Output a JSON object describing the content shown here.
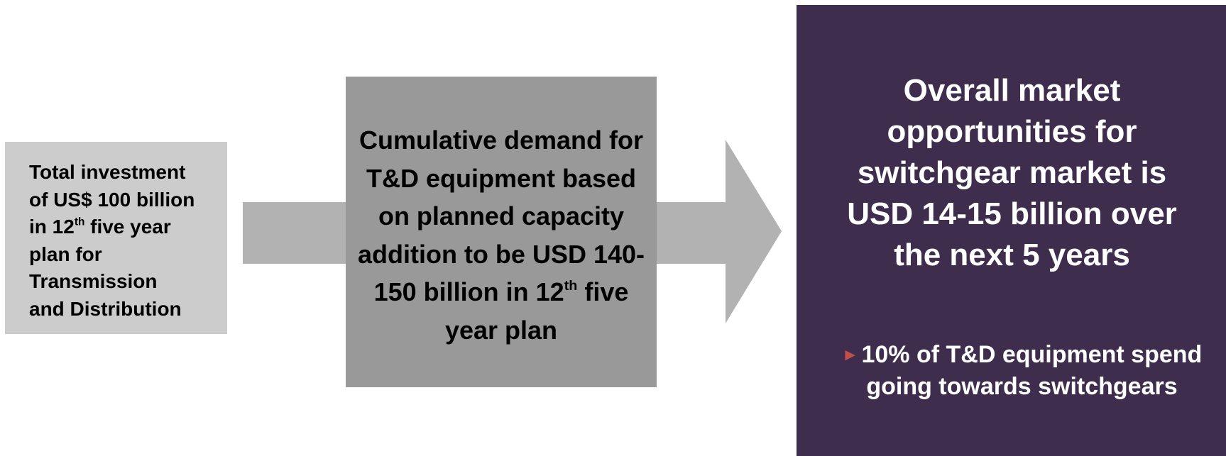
{
  "colors": {
    "box1_bg": "#cccccc",
    "box2_bg": "#999999",
    "box3_bg": "#3f2d4e",
    "arrow": "#b2b2b2",
    "bullet": "#c0504d"
  },
  "box1": {
    "line1": "Total investment",
    "line2": "of US$ 100 billion",
    "line3_pre": "in 12",
    "line3_sup": "th",
    "line3_post": " five year",
    "line4": "plan for",
    "line5": "Transmission",
    "line6": "and Distribution"
  },
  "box2": {
    "line1": "Cumulative demand for",
    "line2": "T&D equipment based",
    "line3": "on planned capacity",
    "line4": "addition to be USD 140-",
    "line5_pre": "150 billion in 12",
    "line5_sup": "th",
    "line5_post": " five",
    "line6": "year plan"
  },
  "box3": {
    "title_lines": [
      "Overall market",
      "opportunities for",
      "switchgear market is",
      "USD 14-15 billion over",
      "the next 5 years"
    ],
    "bullet_icon": "triangle-bullet-icon",
    "bullet_glyph": "►",
    "note_line1": "10% of T&D equipment spend",
    "note_line2": "going towards switchgears"
  }
}
